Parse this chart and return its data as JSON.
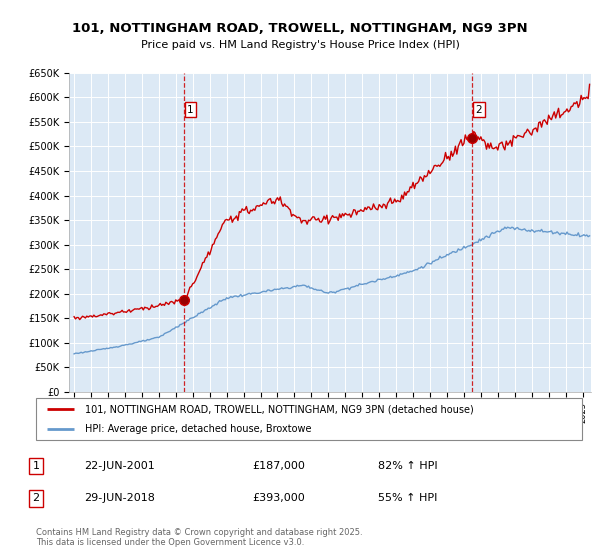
{
  "title_line1": "101, NOTTINGHAM ROAD, TROWELL, NOTTINGHAM, NG9 3PN",
  "title_line2": "Price paid vs. HM Land Registry's House Price Index (HPI)",
  "background_color": "#ffffff",
  "plot_bg_color": "#dce9f5",
  "grid_color": "#ffffff",
  "line1_color": "#cc0000",
  "line2_color": "#6699cc",
  "dashed_line_color": "#cc0000",
  "legend_line1": "101, NOTTINGHAM ROAD, TROWELL, NOTTINGHAM, NG9 3PN (detached house)",
  "legend_line2": "HPI: Average price, detached house, Broxtowe",
  "annotation1_date": "22-JUN-2001",
  "annotation1_price": "£187,000",
  "annotation1_hpi": "82% ↑ HPI",
  "annotation2_date": "29-JUN-2018",
  "annotation2_price": "£393,000",
  "annotation2_hpi": "55% ↑ HPI",
  "footer": "Contains HM Land Registry data © Crown copyright and database right 2025.\nThis data is licensed under the Open Government Licence v3.0.",
  "ylim_min": 0,
  "ylim_max": 650000,
  "ytick_step": 50000,
  "year_start": 1995,
  "year_end": 2026,
  "purchase1_year": 2001.47,
  "purchase1_price": 187000,
  "purchase2_year": 2018.47,
  "purchase2_price": 393000
}
